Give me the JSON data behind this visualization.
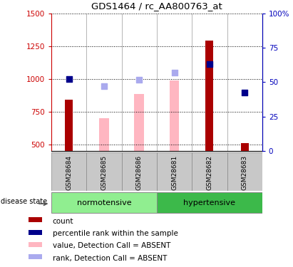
{
  "title": "GDS1464 / rc_AA800763_at",
  "samples": [
    "GSM28684",
    "GSM28685",
    "GSM28686",
    "GSM28681",
    "GSM28682",
    "GSM28683"
  ],
  "groups": [
    {
      "name": "normotensive",
      "indices": [
        0,
        1,
        2
      ],
      "color": "#90EE90"
    },
    {
      "name": "hypertensive",
      "indices": [
        3,
        4,
        5
      ],
      "color": "#3CB94A"
    }
  ],
  "ylim_left": [
    450,
    1500
  ],
  "ylim_right": [
    0,
    100
  ],
  "yticks_left": [
    500,
    750,
    1000,
    1250,
    1500
  ],
  "yticks_right": [
    0,
    25,
    50,
    75,
    100
  ],
  "ytick_labels_left": [
    "500",
    "750",
    "1000",
    "1250",
    "1500"
  ],
  "ytick_labels_right": [
    "0",
    "25",
    "50",
    "75",
    "100%"
  ],
  "count_bars": [
    840,
    null,
    null,
    null,
    1290,
    510
  ],
  "count_color": "#AA0000",
  "absent_value_bars": [
    null,
    700,
    885,
    990,
    null,
    null
  ],
  "absent_value_color": "#FFB6C1",
  "percentile_rank_dots": [
    1000,
    null,
    null,
    null,
    1115,
    895
  ],
  "percentile_rank_color": "#00008B",
  "absent_rank_dots": [
    null,
    945,
    995,
    1050,
    null,
    null
  ],
  "absent_rank_color": "#AAAAEE",
  "count_bar_width": 0.22,
  "absent_bar_width": 0.28,
  "dot_size": 28,
  "left_axis_color": "#CC0000",
  "right_axis_color": "#0000BB",
  "grid_color": "black",
  "grid_linestyle": ":",
  "grid_linewidth": 0.7,
  "legend_items": [
    {
      "color": "#AA0000",
      "label": "count"
    },
    {
      "color": "#00008B",
      "label": "percentile rank within the sample"
    },
    {
      "color": "#FFB6C1",
      "label": "value, Detection Call = ABSENT"
    },
    {
      "color": "#AAAAEE",
      "label": "rank, Detection Call = ABSENT"
    }
  ]
}
